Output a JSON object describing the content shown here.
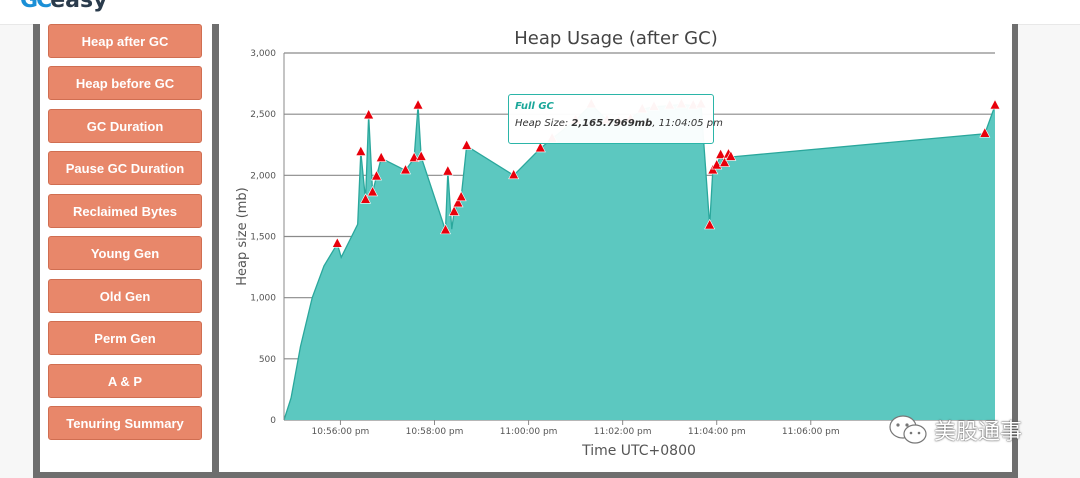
{
  "app": {
    "logo_text": "easy"
  },
  "sidebar": {
    "items": [
      {
        "label": "Heap after GC"
      },
      {
        "label": "Heap before GC"
      },
      {
        "label": "GC Duration"
      },
      {
        "label": "Pause GC Duration"
      },
      {
        "label": "Reclaimed Bytes"
      },
      {
        "label": "Young Gen"
      },
      {
        "label": "Old Gen"
      },
      {
        "label": "Perm Gen"
      },
      {
        "label": "A & P"
      },
      {
        "label": "Tenuring Summary"
      }
    ]
  },
  "tooltip": {
    "title": "Full GC",
    "label": "Heap Size:",
    "value": "2,165.7969mb",
    "time": "11:04:05 pm"
  },
  "watermark": {
    "text": "美股通事",
    "icon": "wechat-icon"
  },
  "colors": {
    "area_fill": "#5cc8c0",
    "area_line": "#2aa79c",
    "marker": "#e8000b",
    "button": "#e8876a"
  },
  "chart_data": {
    "type": "area",
    "title": "Heap Usage (after GC)",
    "xlabel": "Time UTC+0800",
    "ylabel": "Heap size (mb)",
    "xlim": [
      "10:54:48 pm",
      "11:09:55 pm"
    ],
    "ylim": [
      0,
      3000
    ],
    "yticks": [
      0,
      500,
      1000,
      1500,
      2000,
      2500,
      3000
    ],
    "ytick_labels": [
      "0",
      "500",
      "1,000",
      "1,500",
      "2,000",
      "2,500",
      "3,000"
    ],
    "xticks": [
      "10:56:00 pm",
      "10:58:00 pm",
      "11:00:00 pm",
      "11:02:00 pm",
      "11:04:00 pm",
      "11:06:00 pm",
      "11:08:00 pm"
    ],
    "xtick_labels": [
      "10:56:00 pm",
      "10:58:00 pm",
      "11:00:00 pm",
      "11:02:00 pm",
      "11:04:00 pm",
      "11:06:00 pm",
      "11:"
    ],
    "grid": true,
    "series": [
      {
        "points": [
          {
            "t": "10:54:48 pm",
            "y": 0
          },
          {
            "t": "10:54:57 pm",
            "y": 180
          },
          {
            "t": "10:55:09 pm",
            "y": 600
          },
          {
            "t": "10:55:24 pm",
            "y": 1000
          },
          {
            "t": "10:55:39 pm",
            "y": 1260
          },
          {
            "t": "10:55:56 pm",
            "y": 1440,
            "marker": true
          },
          {
            "t": "10:56:01 pm",
            "y": 1330
          },
          {
            "t": "10:56:22 pm",
            "y": 1600
          },
          {
            "t": "10:56:26 pm",
            "y": 2190,
            "marker": true
          },
          {
            "t": "10:56:32 pm",
            "y": 1800,
            "marker": true
          },
          {
            "t": "10:56:36 pm",
            "y": 2490,
            "marker": true
          },
          {
            "t": "10:56:41 pm",
            "y": 1860,
            "marker": true
          },
          {
            "t": "10:56:46 pm",
            "y": 1990,
            "marker": true
          },
          {
            "t": "10:56:52 pm",
            "y": 2140,
            "marker": true
          },
          {
            "t": "10:57:23 pm",
            "y": 2040,
            "marker": true
          },
          {
            "t": "10:57:34 pm",
            "y": 2140,
            "marker": true
          },
          {
            "t": "10:57:39 pm",
            "y": 2570,
            "marker": true
          },
          {
            "t": "10:57:43 pm",
            "y": 2150,
            "marker": true
          },
          {
            "t": "10:58:14 pm",
            "y": 1550,
            "marker": true
          },
          {
            "t": "10:58:17 pm",
            "y": 2030,
            "marker": true
          },
          {
            "t": "10:58:22 pm",
            "y": 1560
          },
          {
            "t": "10:58:25 pm",
            "y": 1700,
            "marker": true
          },
          {
            "t": "10:58:30 pm",
            "y": 1770,
            "marker": true
          },
          {
            "t": "10:58:34 pm",
            "y": 1820,
            "marker": true
          },
          {
            "t": "10:58:41 pm",
            "y": 2240,
            "marker": true
          },
          {
            "t": "10:59:41 pm",
            "y": 2000,
            "marker": true
          },
          {
            "t": "11:00:15 pm",
            "y": 2220,
            "marker": true
          },
          {
            "t": "11:00:30 pm",
            "y": 2300,
            "marker": true
          },
          {
            "t": "11:01:00 pm",
            "y": 2450,
            "marker": true
          },
          {
            "t": "11:01:20 pm",
            "y": 2580,
            "marker": true
          },
          {
            "t": "11:01:40 pm",
            "y": 2450,
            "marker": true
          },
          {
            "t": "11:01:55 pm",
            "y": 2440,
            "marker": true
          },
          {
            "t": "11:02:10 pm",
            "y": 2460,
            "marker": true
          },
          {
            "t": "11:02:25 pm",
            "y": 2540,
            "marker": true
          },
          {
            "t": "11:02:40 pm",
            "y": 2560,
            "marker": true
          },
          {
            "t": "11:03:00 pm",
            "y": 2570,
            "marker": true
          },
          {
            "t": "11:03:15 pm",
            "y": 2580,
            "marker": true
          },
          {
            "t": "11:03:30 pm",
            "y": 2570,
            "marker": true
          },
          {
            "t": "11:03:40 pm",
            "y": 2580,
            "marker": true
          },
          {
            "t": "11:03:51 pm",
            "y": 1590,
            "marker": true
          },
          {
            "t": "11:03:55 pm",
            "y": 2040,
            "marker": true
          },
          {
            "t": "11:04:00 pm",
            "y": 2080,
            "marker": true
          },
          {
            "t": "11:04:05 pm",
            "y": 2165.7969,
            "marker": true
          },
          {
            "t": "11:04:10 pm",
            "y": 2100,
            "marker": true
          },
          {
            "t": "11:04:15 pm",
            "y": 2170,
            "marker": true
          },
          {
            "t": "11:04:18 pm",
            "y": 2150,
            "marker": true
          },
          {
            "t": "11:09:42 pm",
            "y": 2340,
            "marker": true
          },
          {
            "t": "11:09:55 pm",
            "y": 2570,
            "marker": true
          }
        ]
      }
    ]
  }
}
